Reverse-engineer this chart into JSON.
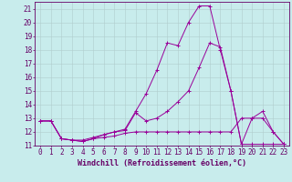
{
  "xlabel": "Windchill (Refroidissement éolien,°C)",
  "background_color": "#c8ecec",
  "plot_bg_color": "#c8ecec",
  "line_color": "#990099",
  "xmin": 0,
  "xmax": 23,
  "ymin": 11,
  "ymax": 21,
  "x": [
    0,
    1,
    2,
    3,
    4,
    5,
    6,
    7,
    8,
    9,
    10,
    11,
    12,
    13,
    14,
    15,
    16,
    17,
    18,
    19,
    20,
    21,
    22,
    23
  ],
  "line1": [
    12.8,
    12.8,
    11.5,
    11.4,
    11.3,
    11.5,
    11.6,
    11.7,
    11.9,
    12.0,
    12.0,
    12.0,
    12.0,
    12.0,
    12.0,
    12.0,
    12.0,
    12.0,
    12.0,
    13.0,
    13.0,
    13.0,
    12.0,
    11.1
  ],
  "line2": [
    12.8,
    12.8,
    11.5,
    11.4,
    11.3,
    11.5,
    11.8,
    12.0,
    12.1,
    13.4,
    12.8,
    13.0,
    13.5,
    14.2,
    15.0,
    16.7,
    18.5,
    18.2,
    15.0,
    11.1,
    13.0,
    13.5,
    12.0,
    11.1
  ],
  "line3": [
    12.8,
    12.8,
    11.5,
    11.4,
    11.4,
    11.6,
    11.8,
    12.0,
    12.2,
    13.5,
    14.8,
    16.5,
    18.5,
    18.3,
    20.0,
    21.2,
    21.2,
    18.0,
    15.0,
    11.1,
    11.1,
    11.1,
    11.1,
    11.1
  ],
  "grid_color": "#b0cccc",
  "tick_color": "#660066",
  "xlabel_fontsize": 6,
  "tick_fontsize": 5.5
}
